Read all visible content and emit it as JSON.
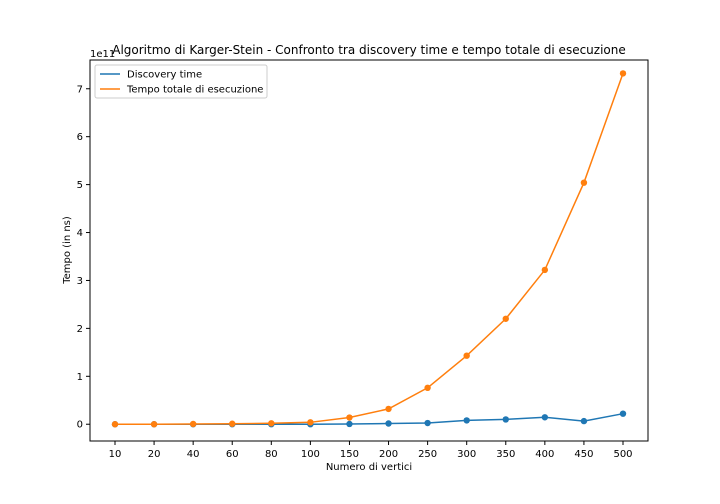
{
  "chart_data": {
    "type": "line",
    "title": "Algoritmo di Karger-Stein - Confronto tra discovery time e tempo totale di esecuzione",
    "xlabel": "Numero di vertici",
    "ylabel": "Tempo (in ns)",
    "y_offset_label": "1e11",
    "categories": [
      "10",
      "20",
      "40",
      "60",
      "80",
      "100",
      "150",
      "200",
      "250",
      "300",
      "350",
      "400",
      "450",
      "500"
    ],
    "ylim": [
      -0.35,
      7.6
    ],
    "y_ticks": [
      0,
      1,
      2,
      3,
      4,
      5,
      6,
      7
    ],
    "y_tick_labels": [
      "0",
      "1",
      "2",
      "3",
      "4",
      "5",
      "6",
      "7"
    ],
    "grid": false,
    "legend_position": "upper-left",
    "series": [
      {
        "name": "Discovery time",
        "color": "#1f77b4",
        "values": [
          0.0,
          0.0,
          0.0,
          0.0,
          0.0,
          0.0,
          0.005,
          0.015,
          0.025,
          0.08,
          0.1,
          0.145,
          0.065,
          0.22
        ]
      },
      {
        "name": "Tempo totale di esecuzione",
        "color": "#ff7f0e",
        "values": [
          0.0,
          0.0,
          0.005,
          0.01,
          0.02,
          0.04,
          0.14,
          0.32,
          0.76,
          1.43,
          2.2,
          3.22,
          5.04,
          7.32
        ]
      }
    ]
  }
}
